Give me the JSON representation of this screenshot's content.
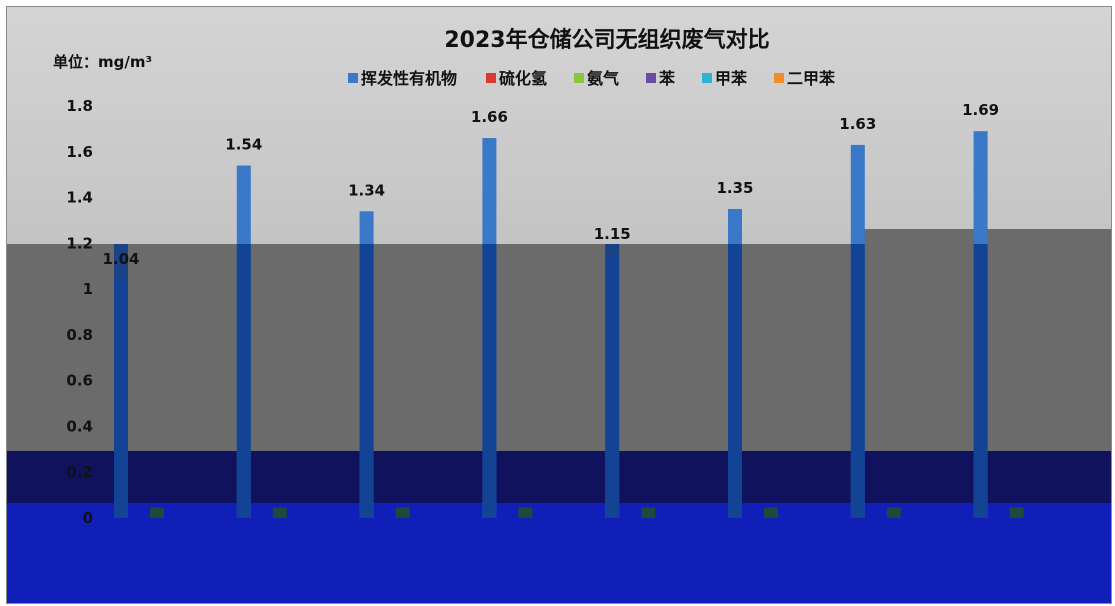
{
  "chart_data": {
    "type": "bar",
    "title": "2023年仓储公司无组织废气对比",
    "unit_label": "单位：mg/m³",
    "ylim": [
      0,
      1.8
    ],
    "yticks": [
      "0",
      "0.2",
      "0.4",
      "0.6",
      "0.8",
      "1",
      "1.2",
      "1.4",
      "1.6",
      "1.8"
    ],
    "legend_position": "top",
    "categories": [
      "",
      "",
      "",
      "",
      "",
      "",
      "",
      ""
    ],
    "series": [
      {
        "name": "挥发性有机物",
        "color": "#3a78c9",
        "values": [
          1.04,
          1.54,
          1.34,
          1.66,
          1.15,
          1.35,
          1.63,
          1.69
        ],
        "labels": [
          "1.04",
          "1.54",
          "1.34",
          "1.66",
          "1.15",
          "1.35",
          "1.63",
          "1.69"
        ]
      },
      {
        "name": "硫化氢",
        "color": "#d93a2f",
        "values": [
          0,
          0,
          0,
          0,
          0,
          0,
          0,
          0
        ]
      },
      {
        "name": "氨气",
        "color": "#8cc63e",
        "values": [
          0.02,
          0.02,
          0.02,
          0.02,
          0.02,
          0.02,
          0.02,
          0.02
        ]
      },
      {
        "name": "苯",
        "color": "#6a4ba3",
        "values": [
          0,
          0,
          0,
          0,
          0,
          0,
          0,
          0
        ]
      },
      {
        "name": "甲苯",
        "color": "#2fb2d6",
        "values": [
          0,
          0,
          0,
          0,
          0,
          0,
          0,
          0
        ]
      },
      {
        "name": "二甲苯",
        "color": "#f28c28",
        "values": [
          0,
          0,
          0,
          0,
          0,
          0,
          0,
          0
        ]
      }
    ]
  }
}
